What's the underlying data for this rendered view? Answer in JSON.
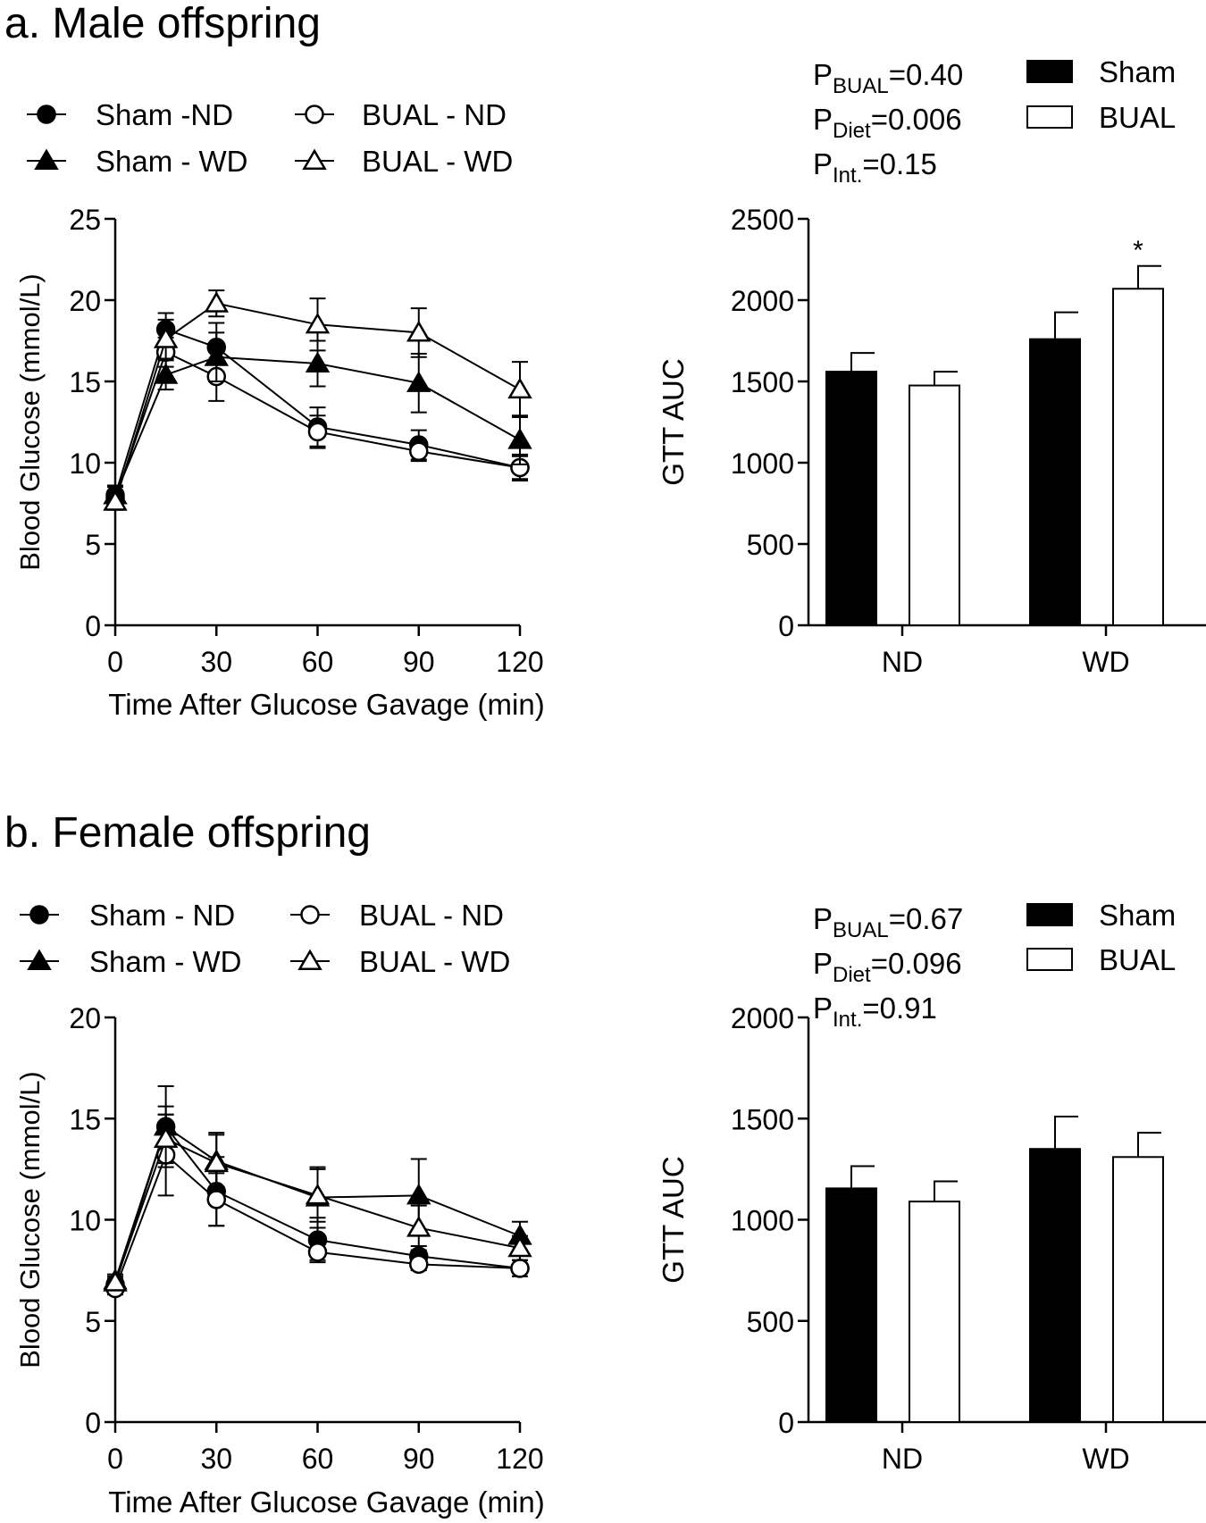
{
  "panels": [
    {
      "title": "a. Male offspring",
      "pstats": [
        {
          "base": "P",
          "sub": "BUAL",
          "rest": "=0.40"
        },
        {
          "base": "P",
          "sub": "Diet",
          "rest": "=0.006"
        },
        {
          "base": "P",
          "sub": "Int.",
          "rest": "=0.15"
        }
      ]
    },
    {
      "title": "b. Female offspring",
      "pstats": [
        {
          "base": "P",
          "sub": "BUAL",
          "rest": "=0.67"
        },
        {
          "base": "P",
          "sub": "Diet",
          "rest": "=0.096"
        },
        {
          "base": "P",
          "sub": "Int.",
          "rest": "=0.91"
        }
      ]
    }
  ],
  "chart_data": [
    {
      "id": "male-gtt",
      "type": "line",
      "xlabel": "Time After Glucose Gavage (min)",
      "ylabel": "Blood Glucose  (mmol/L)",
      "xlim": [
        0,
        120
      ],
      "ylim": [
        0,
        25
      ],
      "xticks": [
        0,
        30,
        60,
        90,
        120
      ],
      "yticks": [
        0,
        5,
        10,
        15,
        20,
        25
      ],
      "x": [
        0,
        15,
        30,
        60,
        90,
        120
      ],
      "series": [
        {
          "name": "Sham -ND",
          "marker": "circle",
          "fill": "black",
          "values": [
            8.0,
            18.2,
            17.1,
            12.2,
            11.1,
            9.7
          ],
          "err": [
            0.6,
            1.0,
            1.5,
            1.2,
            0.9,
            0.8
          ]
        },
        {
          "name": "BUAL - ND",
          "marker": "circle",
          "fill": "white",
          "values": [
            7.8,
            16.8,
            15.3,
            11.9,
            10.7,
            9.7
          ],
          "err": [
            0.5,
            0.9,
            1.5,
            1.0,
            0.6,
            0.7
          ]
        },
        {
          "name": "Sham - WD",
          "marker": "triangle",
          "fill": "black",
          "values": [
            8.0,
            15.4,
            16.5,
            16.1,
            14.9,
            11.4
          ],
          "err": [
            0.5,
            0.9,
            1.5,
            1.4,
            1.8,
            1.5
          ]
        },
        {
          "name": "BUAL - WD",
          "marker": "triangle",
          "fill": "white",
          "values": [
            7.6,
            17.6,
            19.8,
            18.5,
            18.0,
            14.5
          ],
          "err": [
            0.5,
            1.2,
            0.8,
            1.6,
            1.5,
            1.7
          ]
        }
      ],
      "legend_order": [
        0,
        1,
        2,
        3
      ]
    },
    {
      "id": "male-auc",
      "type": "bar",
      "ylabel": "GTT  AUC",
      "categories": [
        "ND",
        "WD"
      ],
      "ylim": [
        0,
        2500
      ],
      "yticks": [
        0,
        500,
        1000,
        1500,
        2000,
        2500
      ],
      "series": [
        {
          "name": "Sham",
          "fill": "black",
          "values": [
            1560,
            1760
          ],
          "err": [
            115,
            165
          ]
        },
        {
          "name": "BUAL",
          "fill": "white",
          "values": [
            1475,
            2070
          ],
          "err": [
            85,
            140
          ]
        }
      ],
      "annotations": [
        {
          "category": "WD",
          "series": "BUAL",
          "text": "*"
        }
      ]
    },
    {
      "id": "female-gtt",
      "type": "line",
      "xlabel": "Time After Glucose Gavage (min)",
      "ylabel": "Blood Glucose  (mmol/L)",
      "xlim": [
        0,
        120
      ],
      "ylim": [
        0,
        20
      ],
      "xticks": [
        0,
        30,
        60,
        90,
        120
      ],
      "yticks": [
        0,
        5,
        10,
        15,
        20
      ],
      "x": [
        0,
        15,
        30,
        60,
        90,
        120
      ],
      "series": [
        {
          "name": "Sham - ND",
          "marker": "circle",
          "fill": "black",
          "values": [
            6.8,
            14.6,
            11.4,
            9.0,
            8.2,
            7.6
          ],
          "err": [
            0.3,
            2.0,
            1.7,
            1.1,
            0.5,
            0.4
          ]
        },
        {
          "name": "BUAL - ND",
          "marker": "circle",
          "fill": "white",
          "values": [
            6.6,
            13.2,
            11.0,
            8.4,
            7.8,
            7.6
          ],
          "err": [
            0.3,
            2.0,
            1.3,
            0.4,
            0.3,
            0.2
          ]
        },
        {
          "name": "Sham - WD",
          "marker": "triangle",
          "fill": "black",
          "values": [
            7.0,
            14.6,
            12.9,
            11.1,
            11.2,
            9.2
          ],
          "err": [
            0.3,
            1.0,
            1.4,
            1.5,
            1.8,
            0.7
          ]
        },
        {
          "name": "BUAL - WD",
          "marker": "triangle",
          "fill": "white",
          "values": [
            6.9,
            14.0,
            12.8,
            11.2,
            9.6,
            8.6
          ],
          "err": [
            0.3,
            1.2,
            1.4,
            1.3,
            1.1,
            0.6
          ]
        }
      ],
      "legend_order": [
        0,
        1,
        2,
        3
      ]
    },
    {
      "id": "female-auc",
      "type": "bar",
      "ylabel": "GTT  AUC",
      "categories": [
        "ND",
        "WD"
      ],
      "ylim": [
        0,
        2000
      ],
      "yticks": [
        0,
        500,
        1000,
        1500,
        2000
      ],
      "series": [
        {
          "name": "Sham",
          "fill": "black",
          "values": [
            1155,
            1350
          ],
          "err": [
            110,
            160
          ]
        },
        {
          "name": "BUAL",
          "fill": "white",
          "values": [
            1090,
            1310
          ],
          "err": [
            100,
            120
          ]
        }
      ],
      "annotations": []
    }
  ]
}
